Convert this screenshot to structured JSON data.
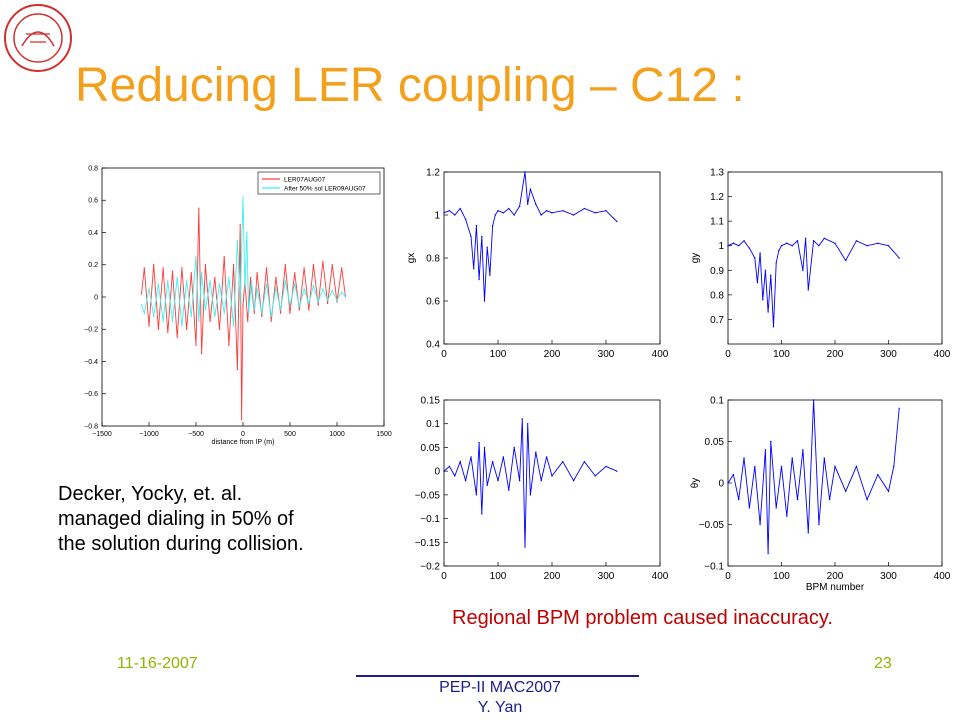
{
  "slide": {
    "title": "Reducing LER coupling – C12 :",
    "note_lines": [
      "Decker, Yocky, et. al.",
      "managed dialing in 50% of",
      "the solution during collision."
    ],
    "regional_note": "Regional BPM problem caused inaccuracy.",
    "date": "11-16-2007",
    "page": "23",
    "footer_line1": "PEP-II MAC2007",
    "footer_line2": "Y. Yan"
  },
  "colors": {
    "title": "#f3a01c",
    "footer_green": "#8db600",
    "footer_blue": "#1a1f8c",
    "regional_red": "#c00000",
    "logo_red": "#d03030",
    "series_red": "#ff3b3b",
    "series_cyan": "#3ff0f0",
    "series_blue": "#0000ff"
  },
  "chart_data": [
    {
      "id": "main",
      "type": "line",
      "xlabel": "distance from IP (m)",
      "ylabel": "",
      "xlim": [
        -1500,
        1500
      ],
      "ylim": [
        -0.8,
        0.8
      ],
      "xticks": [
        -1500,
        -1000,
        -500,
        0,
        500,
        1000,
        1500
      ],
      "yticks": [
        -0.8,
        -0.6,
        -0.4,
        -0.2,
        0,
        0.2,
        0.4,
        0.6,
        0.8
      ],
      "ytick_labels": [
        "−0.8",
        "−0.6",
        "−0.4",
        "−0.2",
        "0",
        "0.2",
        "0.4",
        "0.6",
        "0.8"
      ],
      "xtick_labels": [
        "−1500",
        "−1000",
        "−500",
        "0",
        "500",
        "1000",
        "1500"
      ],
      "legend": [
        "LER07AUG07",
        "After 50% sol LER09AUG07"
      ],
      "legend_position": "top-right",
      "series": [
        {
          "name": "LER07AUG07",
          "color": "#ff3b3b",
          "x": [
            -1080,
            -1050,
            -1000,
            -950,
            -900,
            -850,
            -800,
            -750,
            -700,
            -650,
            -600,
            -550,
            -500,
            -470,
            -440,
            -400,
            -350,
            -300,
            -250,
            -200,
            -150,
            -100,
            -60,
            -30,
            -15,
            0,
            20,
            50,
            80,
            120,
            150,
            200,
            250,
            300,
            350,
            400,
            450,
            500,
            550,
            600,
            650,
            700,
            750,
            800,
            850,
            900,
            950,
            1000,
            1050,
            1090
          ],
          "y": [
            0.02,
            0.18,
            -0.18,
            0.2,
            -0.2,
            0.18,
            -0.22,
            0.16,
            -0.25,
            0.18,
            -0.2,
            0.15,
            -0.3,
            0.55,
            -0.35,
            0.2,
            -0.15,
            0.12,
            -0.2,
            0.25,
            -0.3,
            0.2,
            -0.45,
            0.45,
            -0.76,
            -0.05,
            0.1,
            -0.15,
            0.12,
            -0.1,
            0.15,
            -0.12,
            0.18,
            -0.15,
            0.12,
            -0.1,
            0.2,
            -0.1,
            0.15,
            -0.08,
            0.18,
            -0.08,
            0.2,
            -0.05,
            0.22,
            -0.04,
            0.2,
            -0.03,
            0.18,
            0.0
          ]
        },
        {
          "name": "After 50% sol LER09AUG07",
          "color": "#3ff0f0",
          "x": [
            -1080,
            -1050,
            -1000,
            -950,
            -900,
            -850,
            -800,
            -750,
            -700,
            -650,
            -600,
            -550,
            -500,
            -470,
            -440,
            -400,
            -350,
            -300,
            -250,
            -200,
            -150,
            -100,
            -60,
            -30,
            0,
            20,
            40,
            60,
            90,
            120,
            150,
            200,
            250,
            300,
            350,
            400,
            450,
            500,
            550,
            600,
            650,
            700,
            750,
            800,
            850,
            900,
            950,
            1000,
            1050,
            1090
          ],
          "y": [
            -0.05,
            -0.1,
            0.05,
            -0.12,
            0.08,
            -0.15,
            0.1,
            -0.15,
            0.12,
            -0.18,
            0.1,
            -0.12,
            0.25,
            -0.15,
            0.15,
            -0.08,
            0.1,
            -0.12,
            0.08,
            -0.1,
            0.12,
            -0.18,
            0.35,
            -0.05,
            0.62,
            0.05,
            0.4,
            -0.1,
            0.1,
            -0.08,
            0.05,
            -0.1,
            0.08,
            -0.12,
            0.06,
            -0.08,
            0.1,
            -0.05,
            0.08,
            -0.06,
            0.05,
            -0.04,
            0.07,
            -0.03,
            0.05,
            -0.02,
            0.04,
            -0.02,
            0.03,
            0.0
          ]
        }
      ]
    },
    {
      "id": "gx",
      "type": "line",
      "xlabel": "",
      "ylabel": "gx",
      "xlim": [
        0,
        400
      ],
      "ylim": [
        0.4,
        1.2
      ],
      "xticks": [
        0,
        100,
        200,
        300,
        400
      ],
      "yticks": [
        0.4,
        0.6,
        0.8,
        1,
        1.2
      ],
      "series": [
        {
          "name": "",
          "color": "#0000ff",
          "x": [
            0,
            10,
            20,
            30,
            40,
            50,
            55,
            60,
            65,
            70,
            75,
            80,
            85,
            90,
            95,
            100,
            110,
            120,
            130,
            140,
            150,
            155,
            160,
            170,
            180,
            190,
            200,
            220,
            240,
            260,
            280,
            300,
            320
          ],
          "y": [
            1.01,
            1.02,
            1.0,
            1.03,
            0.98,
            0.9,
            0.75,
            0.95,
            0.7,
            0.9,
            0.6,
            0.85,
            0.72,
            0.95,
            1.0,
            1.02,
            1.01,
            1.03,
            1.0,
            1.04,
            1.2,
            1.05,
            1.12,
            1.05,
            1.0,
            1.02,
            1.01,
            1.02,
            1.0,
            1.03,
            1.01,
            1.02,
            0.97
          ]
        }
      ]
    },
    {
      "id": "gy",
      "type": "line",
      "xlabel": "",
      "ylabel": "gy",
      "xlim": [
        0,
        400
      ],
      "ylim": [
        0.6,
        1.3
      ],
      "xticks": [
        0,
        100,
        200,
        300,
        400
      ],
      "yticks": [
        0.7,
        0.8,
        0.9,
        1,
        1.1,
        1.2,
        1.3
      ],
      "series": [
        {
          "name": "",
          "color": "#0000ff",
          "x": [
            0,
            10,
            20,
            30,
            40,
            50,
            55,
            60,
            65,
            70,
            75,
            80,
            85,
            90,
            95,
            100,
            110,
            120,
            130,
            140,
            145,
            150,
            160,
            170,
            180,
            200,
            220,
            240,
            260,
            280,
            300,
            320
          ],
          "y": [
            1.0,
            1.01,
            1.0,
            1.02,
            0.99,
            0.95,
            0.85,
            0.97,
            0.78,
            0.9,
            0.73,
            0.88,
            0.67,
            0.93,
            0.98,
            1.0,
            1.01,
            1.0,
            1.02,
            0.9,
            1.03,
            0.82,
            1.02,
            1.0,
            1.03,
            1.01,
            0.94,
            1.02,
            1.0,
            1.01,
            1.0,
            0.95
          ]
        }
      ]
    },
    {
      "id": "theta-x",
      "type": "line",
      "xlabel": "",
      "ylabel": "",
      "xlim": [
        0,
        400
      ],
      "ylim": [
        -0.2,
        0.15
      ],
      "xticks": [
        0,
        100,
        200,
        300,
        400
      ],
      "yticks": [
        -0.2,
        -0.15,
        -0.1,
        -0.05,
        0,
        0.05,
        0.1,
        0.15
      ],
      "ytick_labels": [
        "−0.2",
        "−0.15",
        "−0.1",
        "−0.05",
        "0",
        "0.05",
        "0.1",
        "0.15"
      ],
      "series": [
        {
          "name": "",
          "color": "#0000ff",
          "x": [
            0,
            10,
            20,
            30,
            40,
            50,
            60,
            65,
            70,
            75,
            80,
            90,
            100,
            110,
            120,
            130,
            140,
            145,
            150,
            155,
            160,
            170,
            180,
            190,
            200,
            220,
            240,
            260,
            280,
            300,
            320
          ],
          "y": [
            0.0,
            0.01,
            -0.01,
            0.02,
            -0.02,
            0.03,
            -0.05,
            0.06,
            -0.09,
            0.05,
            -0.03,
            0.02,
            -0.02,
            0.03,
            -0.04,
            0.05,
            -0.02,
            0.11,
            -0.16,
            0.1,
            -0.05,
            0.04,
            -0.02,
            0.03,
            -0.01,
            0.02,
            -0.02,
            0.02,
            -0.01,
            0.01,
            0.0
          ]
        }
      ]
    },
    {
      "id": "theta-y",
      "type": "line",
      "xlabel": "BPM number",
      "ylabel": "θy",
      "xlim": [
        0,
        400
      ],
      "ylim": [
        -0.1,
        0.1
      ],
      "xticks": [
        0,
        100,
        200,
        300,
        400
      ],
      "yticks": [
        -0.1,
        -0.05,
        0,
        0.05,
        0.1
      ],
      "ytick_labels": [
        "−0.1",
        "−0.05",
        "0",
        "0.05",
        "0.1"
      ],
      "series": [
        {
          "name": "",
          "color": "#0000ff",
          "x": [
            0,
            10,
            20,
            30,
            40,
            50,
            60,
            70,
            75,
            80,
            90,
            100,
            110,
            120,
            130,
            140,
            150,
            160,
            170,
            180,
            190,
            200,
            220,
            240,
            260,
            280,
            300,
            310,
            320
          ],
          "y": [
            0.0,
            0.01,
            -0.02,
            0.03,
            -0.03,
            0.02,
            -0.05,
            0.04,
            -0.085,
            0.05,
            -0.03,
            0.02,
            -0.04,
            0.03,
            -0.02,
            0.04,
            -0.06,
            0.1,
            -0.05,
            0.03,
            -0.02,
            0.02,
            -0.01,
            0.02,
            -0.02,
            0.01,
            -0.01,
            0.02,
            0.09
          ]
        }
      ]
    }
  ]
}
